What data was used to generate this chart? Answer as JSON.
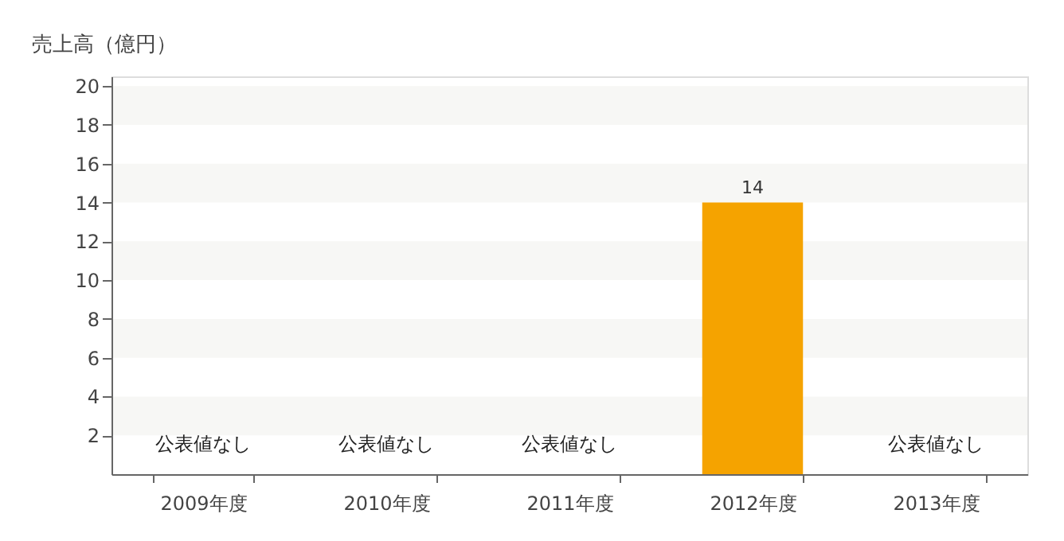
{
  "chart_data": {
    "type": "bar",
    "ylabel": "売上高（億円）",
    "categories": [
      "2009年度",
      "2010年度",
      "2011年度",
      "2012年度",
      "2013年度"
    ],
    "values": [
      null,
      null,
      null,
      14,
      null
    ],
    "color": "#f5a300",
    "data_labels": true,
    "ylim": [
      0,
      20.5
    ],
    "yticks": [
      2,
      4,
      6,
      8,
      10,
      12,
      14,
      16,
      18,
      20
    ],
    "bands": [
      {
        "axis": "y",
        "from": 2,
        "to": 4,
        "color": "#f7f7f5"
      },
      {
        "axis": "y",
        "from": 6,
        "to": 8,
        "color": "#f7f7f5"
      },
      {
        "axis": "y",
        "from": 10,
        "to": 12,
        "color": "#f7f7f5"
      },
      {
        "axis": "y",
        "from": 14,
        "to": 16,
        "color": "#f7f7f5"
      },
      {
        "axis": "y",
        "from": 18,
        "to": 20,
        "color": "#f7f7f5"
      }
    ],
    "annotations": [
      "公表値なし",
      "公表値なし",
      "公表値なし",
      "公表値なし"
    ]
  }
}
